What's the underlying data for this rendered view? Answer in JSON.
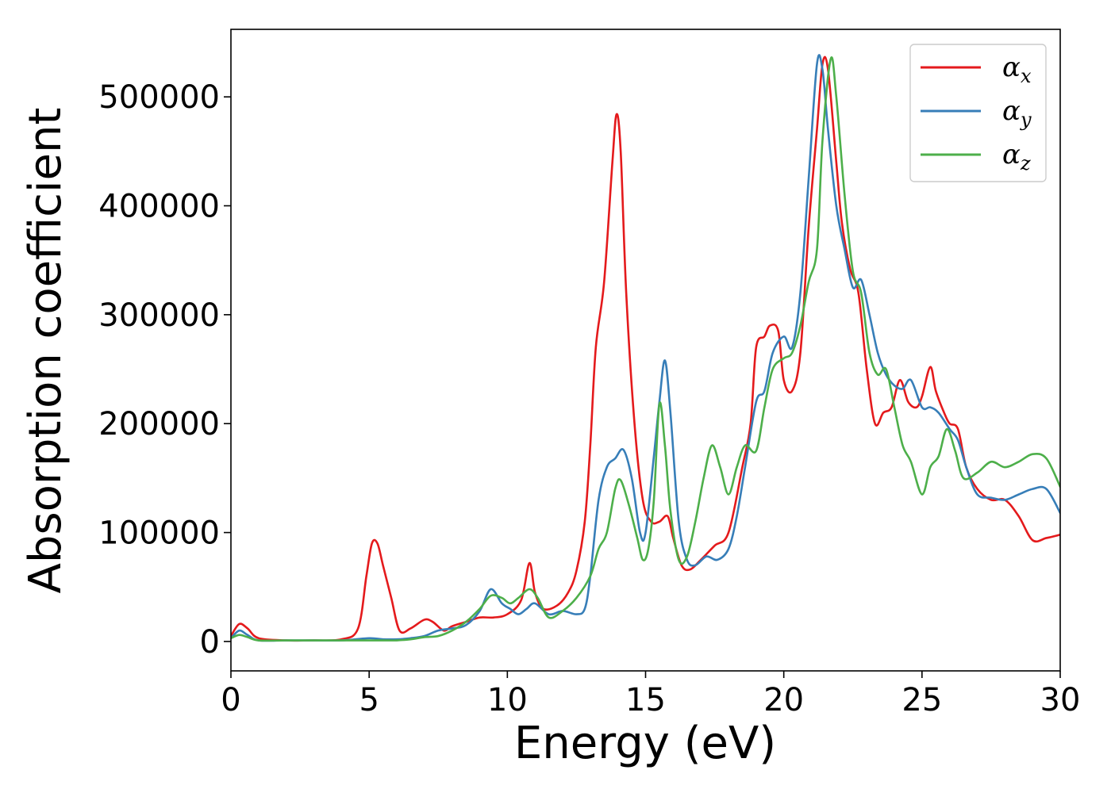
{
  "chart_data": {
    "type": "line",
    "title": "",
    "xlabel": "Energy (eV)",
    "ylabel": "Absorption coefficient",
    "xlim": [
      0,
      30
    ],
    "ylim": [
      -27000,
      562000
    ],
    "xticks": [
      0,
      5,
      10,
      15,
      20,
      25,
      30
    ],
    "xtick_labels": [
      "0",
      "5",
      "10",
      "15",
      "20",
      "25",
      "30"
    ],
    "yticks": [
      0,
      100000,
      200000,
      300000,
      400000,
      500000
    ],
    "ytick_labels": [
      "0",
      "100000",
      "200000",
      "300000",
      "400000",
      "500000"
    ],
    "grid": false,
    "legend_position": "top-right",
    "series": [
      {
        "name": "αx",
        "symbol": "α",
        "subscript": "x",
        "color": "#e41a1c",
        "x": [
          0,
          0.3,
          0.6,
          1,
          2,
          3,
          4,
          4.6,
          4.9,
          5.1,
          5.3,
          5.5,
          5.8,
          6.1,
          6.5,
          7.0,
          7.3,
          7.7,
          8.0,
          8.5,
          9.0,
          9.5,
          10.0,
          10.5,
          10.8,
          11.0,
          11.3,
          11.8,
          12.2,
          12.5,
          12.8,
          13.0,
          13.2,
          13.5,
          13.8,
          13.95,
          14.1,
          14.3,
          14.6,
          14.9,
          15.2,
          15.5,
          15.8,
          16.0,
          16.3,
          16.6,
          17.0,
          17.5,
          18.0,
          18.5,
          18.8,
          19.0,
          19.3,
          19.5,
          19.8,
          20.0,
          20.3,
          20.6,
          20.9,
          21.2,
          21.4,
          21.6,
          21.9,
          22.1,
          22.4,
          22.7,
          23.0,
          23.3,
          23.6,
          23.9,
          24.2,
          24.5,
          24.8,
          25.0,
          25.3,
          25.5,
          25.8,
          26.0,
          26.3,
          26.6,
          27.0,
          27.5,
          28.0,
          28.5,
          29.0,
          29.5,
          30.0
        ],
        "y": [
          5000,
          16000,
          12000,
          3000,
          1000,
          1000,
          2000,
          12000,
          60000,
          90000,
          90000,
          70000,
          40000,
          10000,
          12000,
          20000,
          18000,
          10000,
          14000,
          18000,
          22000,
          22000,
          25000,
          38000,
          72000,
          45000,
          30000,
          33000,
          45000,
          65000,
          110000,
          180000,
          270000,
          330000,
          440000,
          484000,
          450000,
          320000,
          200000,
          130000,
          110000,
          110000,
          115000,
          95000,
          70000,
          66000,
          75000,
          88000,
          100000,
          160000,
          200000,
          270000,
          280000,
          290000,
          285000,
          240000,
          230000,
          265000,
          380000,
          470000,
          530000,
          525000,
          440000,
          385000,
          342000,
          320000,
          250000,
          200000,
          210000,
          215000,
          240000,
          220000,
          215000,
          225000,
          252000,
          230000,
          210000,
          200000,
          195000,
          160000,
          140000,
          130000,
          130000,
          115000,
          93000,
          95000,
          98000
        ]
      },
      {
        "name": "αy",
        "symbol": "α",
        "subscript": "y",
        "color": "#377eb8",
        "x": [
          0,
          0.3,
          0.6,
          1,
          2,
          3,
          4,
          5,
          5.5,
          6,
          6.5,
          7,
          7.5,
          8,
          8.5,
          9,
          9.4,
          9.8,
          10.1,
          10.4,
          10.7,
          11.0,
          11.5,
          12.0,
          12.5,
          12.8,
          13.0,
          13.3,
          13.6,
          13.9,
          14.2,
          14.5,
          14.8,
          15.0,
          15.3,
          15.5,
          15.7,
          15.9,
          16.2,
          16.5,
          16.8,
          17.2,
          17.6,
          18.0,
          18.3,
          18.6,
          19.0,
          19.3,
          19.6,
          20.0,
          20.3,
          20.6,
          20.9,
          21.2,
          21.4,
          21.6,
          21.9,
          22.2,
          22.5,
          22.8,
          23.1,
          23.4,
          23.7,
          24.0,
          24.3,
          24.6,
          25.0,
          25.3,
          25.6,
          26.0,
          26.3,
          26.6,
          27.0,
          27.5,
          28.0,
          28.5,
          29.0,
          29.5,
          30.0
        ],
        "y": [
          3000,
          10000,
          6000,
          1000,
          1000,
          1000,
          1000,
          3000,
          2000,
          2000,
          3000,
          5000,
          10000,
          12000,
          15000,
          28000,
          48000,
          35000,
          30000,
          25000,
          30000,
          35000,
          25000,
          28000,
          25000,
          30000,
          60000,
          130000,
          160000,
          168000,
          176000,
          150000,
          100000,
          100000,
          170000,
          220000,
          258000,
          210000,
          110000,
          75000,
          70000,
          78000,
          75000,
          85000,
          115000,
          160000,
          220000,
          230000,
          265000,
          280000,
          270000,
          320000,
          425000,
          530000,
          525000,
          470000,
          400000,
          360000,
          325000,
          332000,
          300000,
          265000,
          245000,
          235000,
          232000,
          240000,
          215000,
          215000,
          210000,
          195000,
          185000,
          160000,
          135000,
          132000,
          130000,
          135000,
          140000,
          140000,
          118000
        ]
      },
      {
        "name": "αz",
        "symbol": "α",
        "subscript": "z",
        "color": "#4daf4a",
        "x": [
          0,
          0.3,
          0.6,
          1,
          2,
          3,
          4,
          5,
          5.5,
          6,
          6.5,
          7,
          7.5,
          8,
          8.5,
          9,
          9.4,
          9.8,
          10.1,
          10.4,
          10.8,
          11.1,
          11.5,
          12.0,
          12.5,
          13.0,
          13.3,
          13.6,
          13.9,
          14.1,
          14.4,
          14.7,
          14.9,
          15.1,
          15.3,
          15.5,
          15.7,
          15.9,
          16.2,
          16.5,
          16.8,
          17.1,
          17.4,
          17.7,
          18.0,
          18.3,
          18.6,
          19.0,
          19.3,
          19.6,
          20.0,
          20.3,
          20.6,
          20.9,
          21.2,
          21.4,
          21.7,
          21.9,
          22.2,
          22.5,
          22.8,
          23.1,
          23.4,
          23.7,
          24.0,
          24.3,
          24.6,
          25.0,
          25.3,
          25.6,
          25.9,
          26.2,
          26.5,
          27.0,
          27.5,
          28.0,
          28.5,
          29.0,
          29.5,
          30.0
        ],
        "y": [
          3000,
          6000,
          4000,
          1000,
          1000,
          1000,
          1000,
          1000,
          1000,
          1000,
          2000,
          4000,
          5000,
          10000,
          18000,
          30000,
          42000,
          40000,
          35000,
          40000,
          48000,
          40000,
          22000,
          28000,
          40000,
          60000,
          85000,
          100000,
          140000,
          148000,
          125000,
          95000,
          75000,
          85000,
          130000,
          218000,
          180000,
          120000,
          75000,
          78000,
          110000,
          150000,
          180000,
          160000,
          135000,
          160000,
          180000,
          175000,
          215000,
          250000,
          260000,
          265000,
          290000,
          330000,
          360000,
          460000,
          535000,
          500000,
          410000,
          340000,
          320000,
          265000,
          245000,
          250000,
          215000,
          180000,
          165000,
          135000,
          160000,
          170000,
          195000,
          175000,
          150000,
          155000,
          165000,
          160000,
          165000,
          172000,
          168000,
          142000
        ]
      }
    ]
  }
}
